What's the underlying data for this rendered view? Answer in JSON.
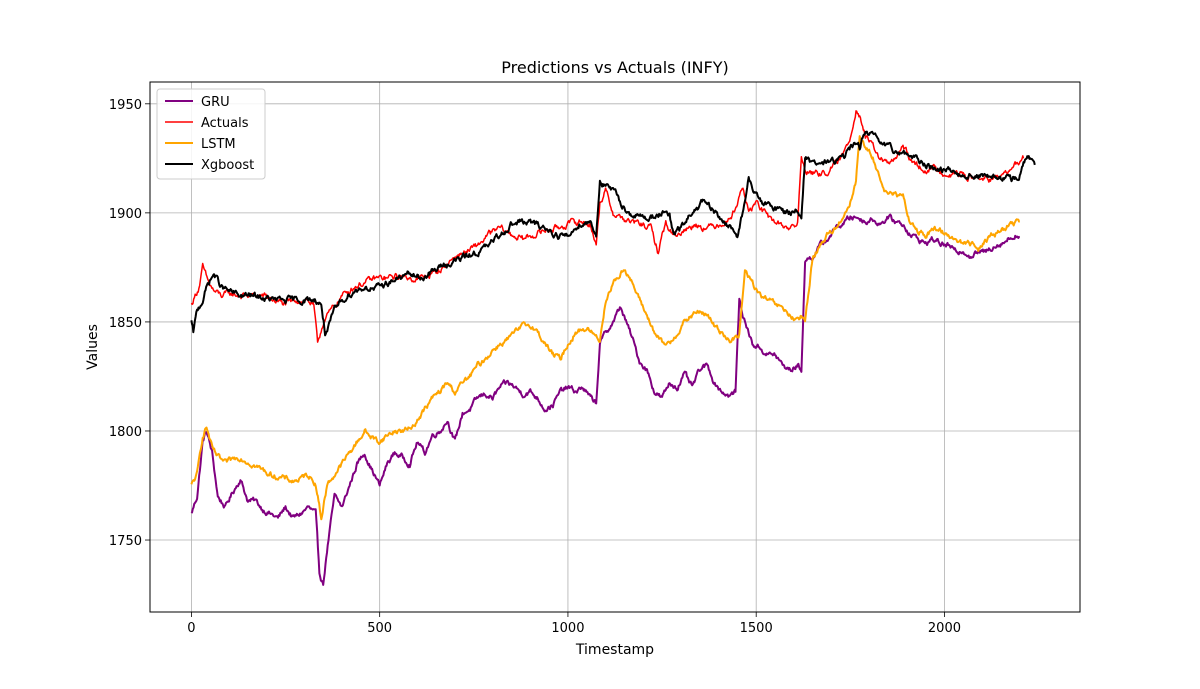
{
  "chart_data": {
    "type": "line",
    "title": "Predictions vs Actuals (INFY)",
    "xlabel": "Timestamp",
    "ylabel": "Values",
    "xlim": [
      -110,
      2360
    ],
    "ylim": [
      1717,
      1960
    ],
    "xticks": [
      0,
      500,
      1000,
      1500,
      2000
    ],
    "xtick_labels": [
      "0",
      "500",
      "1000",
      "1500",
      "2000"
    ],
    "yticks": [
      1750,
      1800,
      1850,
      1900,
      1950
    ],
    "ytick_labels": [
      "1750",
      "1800",
      "1850",
      "1900",
      "1950"
    ],
    "grid": true,
    "legend_position": "top-left",
    "series": [
      {
        "name": "GRU",
        "color": "#800080",
        "width": 2.0,
        "x": [
          0,
          15,
          30,
          40,
          55,
          70,
          90,
          110,
          130,
          150,
          170,
          190,
          210,
          230,
          250,
          270,
          290,
          310,
          330,
          340,
          350,
          360,
          380,
          400,
          420,
          440,
          460,
          480,
          500,
          520,
          540,
          560,
          580,
          600,
          620,
          640,
          660,
          680,
          700,
          720,
          740,
          760,
          780,
          800,
          820,
          840,
          860,
          880,
          900,
          920,
          940,
          960,
          980,
          1000,
          1020,
          1040,
          1060,
          1075,
          1085,
          1100,
          1120,
          1140,
          1150,
          1170,
          1190,
          1210,
          1230,
          1250,
          1270,
          1290,
          1310,
          1330,
          1350,
          1370,
          1390,
          1410,
          1430,
          1445,
          1455,
          1470,
          1490,
          1510,
          1530,
          1550,
          1570,
          1590,
          1610,
          1620,
          1630,
          1650,
          1670,
          1690,
          1710,
          1730,
          1750,
          1770,
          1790,
          1810,
          1830,
          1850,
          1870,
          1890,
          1910,
          1930,
          1950,
          1970,
          1990,
          2010,
          2030,
          2050,
          2070,
          2090,
          2110,
          2130,
          2150,
          2170,
          2190,
          2200
        ],
        "y": [
          1762,
          1770,
          1795,
          1800,
          1790,
          1770,
          1765,
          1772,
          1778,
          1768,
          1768,
          1764,
          1762,
          1760,
          1765,
          1760,
          1762,
          1765,
          1762,
          1735,
          1730,
          1745,
          1770,
          1765,
          1775,
          1785,
          1790,
          1782,
          1775,
          1785,
          1790,
          1788,
          1785,
          1795,
          1790,
          1798,
          1800,
          1805,
          1795,
          1808,
          1810,
          1815,
          1817,
          1815,
          1820,
          1822,
          1820,
          1817,
          1818,
          1815,
          1810,
          1812,
          1818,
          1820,
          1818,
          1820,
          1815,
          1813,
          1840,
          1845,
          1850,
          1857,
          1852,
          1843,
          1832,
          1828,
          1818,
          1815,
          1822,
          1820,
          1826,
          1820,
          1828,
          1830,
          1822,
          1818,
          1816,
          1818,
          1860,
          1850,
          1840,
          1838,
          1835,
          1835,
          1830,
          1828,
          1830,
          1828,
          1878,
          1880,
          1885,
          1888,
          1893,
          1895,
          1898,
          1898,
          1896,
          1897,
          1895,
          1898,
          1896,
          1895,
          1890,
          1888,
          1886,
          1888,
          1886,
          1885,
          1882,
          1883,
          1880,
          1882,
          1882,
          1885,
          1886,
          1888,
          1890,
          1889
        ],
        "noise": 1.2
      },
      {
        "name": "Actuals",
        "color": "#ff0000",
        "width": 1.5,
        "x": [
          0,
          10,
          20,
          30,
          45,
          60,
          80,
          100,
          130,
          160,
          190,
          220,
          250,
          280,
          310,
          325,
          335,
          350,
          370,
          400,
          430,
          460,
          490,
          520,
          550,
          580,
          610,
          640,
          670,
          700,
          730,
          760,
          790,
          820,
          850,
          880,
          910,
          940,
          970,
          1000,
          1030,
          1060,
          1075,
          1085,
          1100,
          1120,
          1140,
          1160,
          1190,
          1220,
          1240,
          1250,
          1260,
          1280,
          1310,
          1340,
          1370,
          1400,
          1430,
          1450,
          1465,
          1480,
          1500,
          1530,
          1560,
          1590,
          1610,
          1620,
          1630,
          1650,
          1680,
          1710,
          1730,
          1750,
          1765,
          1775,
          1790,
          1810,
          1830,
          1850,
          1870,
          1890,
          1920,
          1950,
          1980,
          2010,
          2040,
          2070,
          2100,
          2130,
          2160,
          2180,
          2195,
          2210
        ],
        "y": [
          1858,
          1862,
          1866,
          1875,
          1868,
          1864,
          1862,
          1863,
          1862,
          1862,
          1862,
          1860,
          1858,
          1860,
          1860,
          1857,
          1840,
          1850,
          1855,
          1862,
          1866,
          1868,
          1870,
          1870,
          1871,
          1870,
          1870,
          1872,
          1875,
          1880,
          1882,
          1885,
          1890,
          1893,
          1890,
          1888,
          1890,
          1892,
          1893,
          1895,
          1896,
          1895,
          1885,
          1905,
          1910,
          1900,
          1898,
          1896,
          1895,
          1893,
          1882,
          1890,
          1895,
          1890,
          1892,
          1895,
          1893,
          1895,
          1897,
          1905,
          1912,
          1900,
          1905,
          1898,
          1895,
          1893,
          1895,
          1925,
          1920,
          1918,
          1918,
          1922,
          1926,
          1935,
          1948,
          1945,
          1935,
          1930,
          1925,
          1922,
          1925,
          1930,
          1922,
          1920,
          1920,
          1918,
          1918,
          1916,
          1916,
          1915,
          1918,
          1920,
          1923,
          1925
        ],
        "noise": 1.4
      },
      {
        "name": "LSTM",
        "color": "#ffa500",
        "width": 2.0,
        "x": [
          0,
          15,
          30,
          40,
          55,
          70,
          90,
          110,
          130,
          150,
          170,
          190,
          210,
          230,
          250,
          270,
          290,
          310,
          330,
          345,
          360,
          380,
          400,
          420,
          440,
          460,
          480,
          500,
          520,
          540,
          560,
          580,
          600,
          620,
          640,
          660,
          680,
          700,
          720,
          740,
          760,
          780,
          800,
          820,
          840,
          860,
          880,
          900,
          920,
          940,
          960,
          980,
          1000,
          1020,
          1040,
          1060,
          1075,
          1085,
          1100,
          1120,
          1140,
          1150,
          1170,
          1190,
          1210,
          1230,
          1250,
          1270,
          1290,
          1310,
          1330,
          1350,
          1370,
          1390,
          1410,
          1430,
          1445,
          1455,
          1470,
          1490,
          1510,
          1530,
          1550,
          1570,
          1590,
          1610,
          1620,
          1630,
          1650,
          1670,
          1690,
          1710,
          1730,
          1750,
          1765,
          1775,
          1790,
          1810,
          1830,
          1850,
          1870,
          1890,
          1910,
          1930,
          1950,
          1970,
          1990,
          2010,
          2030,
          2050,
          2070,
          2090,
          2110,
          2130,
          2150,
          2170,
          2190,
          2200
        ],
        "y": [
          1775,
          1780,
          1798,
          1802,
          1792,
          1788,
          1785,
          1787,
          1788,
          1786,
          1784,
          1782,
          1780,
          1779,
          1778,
          1777,
          1778,
          1780,
          1776,
          1760,
          1775,
          1780,
          1785,
          1790,
          1795,
          1800,
          1797,
          1795,
          1798,
          1800,
          1800,
          1801,
          1805,
          1810,
          1815,
          1818,
          1822,
          1818,
          1822,
          1825,
          1830,
          1833,
          1837,
          1840,
          1842,
          1845,
          1848,
          1849,
          1845,
          1840,
          1835,
          1833,
          1840,
          1845,
          1847,
          1846,
          1843,
          1842,
          1860,
          1868,
          1872,
          1875,
          1868,
          1860,
          1853,
          1845,
          1840,
          1840,
          1845,
          1850,
          1853,
          1855,
          1853,
          1848,
          1845,
          1842,
          1842,
          1844,
          1873,
          1868,
          1862,
          1860,
          1858,
          1856,
          1853,
          1850,
          1852,
          1850,
          1880,
          1885,
          1890,
          1893,
          1898,
          1905,
          1915,
          1935,
          1930,
          1925,
          1915,
          1908,
          1908,
          1907,
          1895,
          1892,
          1890,
          1892,
          1892,
          1890,
          1888,
          1886,
          1886,
          1884,
          1888,
          1890,
          1892,
          1894,
          1896,
          1896
        ],
        "noise": 1.2
      },
      {
        "name": "Xgboost",
        "color": "#000000",
        "width": 2.0,
        "x": [
          0,
          5,
          15,
          30,
          45,
          60,
          80,
          100,
          130,
          160,
          190,
          220,
          250,
          280,
          310,
          330,
          345,
          355,
          365,
          380,
          400,
          430,
          460,
          490,
          520,
          550,
          580,
          610,
          640,
          670,
          700,
          730,
          760,
          790,
          820,
          850,
          880,
          910,
          940,
          970,
          1000,
          1030,
          1060,
          1075,
          1085,
          1100,
          1120,
          1140,
          1160,
          1190,
          1220,
          1250,
          1270,
          1280,
          1300,
          1330,
          1360,
          1390,
          1420,
          1450,
          1470,
          1480,
          1500,
          1530,
          1560,
          1590,
          1610,
          1620,
          1630,
          1650,
          1680,
          1710,
          1730,
          1750,
          1765,
          1775,
          1790,
          1810,
          1830,
          1850,
          1870,
          1890,
          1920,
          1950,
          1980,
          2010,
          2040,
          2070,
          2100,
          2130,
          2160,
          2180,
          2200,
          2220,
          2240
        ],
        "y": [
          1850,
          1845,
          1855,
          1860,
          1868,
          1872,
          1866,
          1864,
          1862,
          1862,
          1861,
          1860,
          1860,
          1860,
          1860,
          1860,
          1858,
          1845,
          1848,
          1855,
          1860,
          1864,
          1866,
          1865,
          1868,
          1870,
          1872,
          1870,
          1873,
          1876,
          1878,
          1880,
          1882,
          1885,
          1890,
          1895,
          1896,
          1895,
          1893,
          1890,
          1889,
          1895,
          1896,
          1890,
          1915,
          1912,
          1910,
          1905,
          1900,
          1898,
          1898,
          1900,
          1898,
          1890,
          1893,
          1900,
          1905,
          1900,
          1895,
          1890,
          1905,
          1915,
          1908,
          1903,
          1902,
          1900,
          1902,
          1898,
          1925,
          1922,
          1923,
          1924,
          1925,
          1930,
          1932,
          1930,
          1938,
          1935,
          1932,
          1930,
          1928,
          1928,
          1925,
          1922,
          1920,
          1920,
          1918,
          1917,
          1917,
          1916,
          1916,
          1915,
          1918,
          1926,
          1922
        ],
        "noise": 1.4
      }
    ]
  }
}
